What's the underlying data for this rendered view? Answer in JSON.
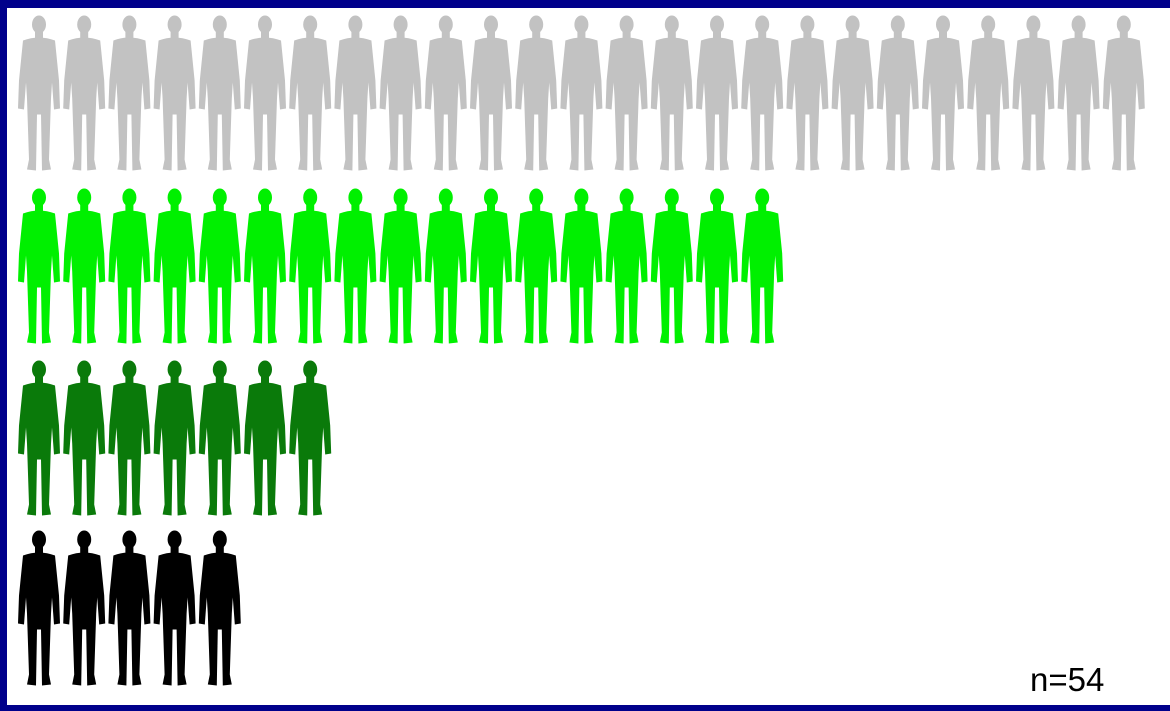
{
  "chart_data": {
    "type": "pictograph",
    "series": [
      {
        "count": 25,
        "color": "#c2c2c2"
      },
      {
        "count": 17,
        "color": "#00f000"
      },
      {
        "count": 7,
        "color": "#0a7a0a"
      },
      {
        "count": 5,
        "color": "#000000"
      }
    ],
    "n_label": "n=54"
  },
  "icons": {
    "unit": "person-silhouette-icon"
  }
}
